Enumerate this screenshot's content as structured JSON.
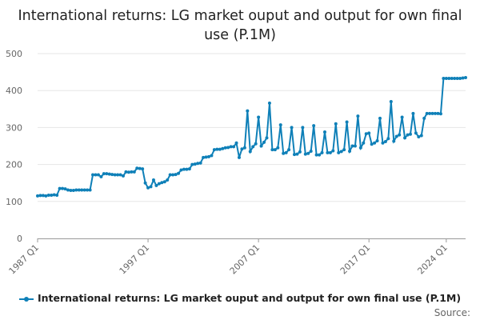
{
  "colors": {
    "series": "#0f80b8",
    "grid": "#e6e6e6",
    "axis": "#999999",
    "text": "#666666"
  },
  "source_label": "Source:",
  "chart_data": {
    "type": "line",
    "title": "International returns: LG market ouput and output for own final use (P.1M)",
    "xlabel": "",
    "ylabel": "",
    "ylim": [
      0,
      500
    ],
    "yticks": [
      0,
      100,
      200,
      300,
      400,
      500
    ],
    "xticks": [
      "1987 Q1",
      "1997 Q1",
      "2007 Q1",
      "2017 Q1",
      "2024 Q1"
    ],
    "grid": true,
    "legend_position": "bottom",
    "series": [
      {
        "name": "International returns: LG market ouput and output for own final use (P.1M)",
        "x_start": "1987 Q1",
        "x_end": "2024 Q4",
        "values": [
          115,
          116,
          116,
          115,
          117,
          117,
          118,
          117,
          135,
          135,
          134,
          131,
          130,
          130,
          131,
          131,
          131,
          131,
          131,
          131,
          172,
          172,
          172,
          167,
          175,
          175,
          174,
          173,
          172,
          172,
          172,
          169,
          180,
          179,
          180,
          180,
          190,
          189,
          188,
          150,
          137,
          140,
          158,
          143,
          148,
          151,
          153,
          158,
          172,
          172,
          173,
          176,
          185,
          187,
          187,
          188,
          200,
          201,
          203,
          204,
          219,
          220,
          221,
          224,
          240,
          241,
          241,
          243,
          245,
          246,
          248,
          248,
          258,
          219,
          242,
          245,
          345,
          235,
          248,
          256,
          328,
          250,
          260,
          272,
          366,
          240,
          240,
          245,
          307,
          230,
          232,
          240,
          300,
          227,
          228,
          234,
          300,
          228,
          230,
          236,
          305,
          226,
          226,
          232,
          288,
          232,
          232,
          237,
          310,
          232,
          235,
          240,
          315,
          236,
          250,
          250,
          331,
          245,
          258,
          283,
          285,
          255,
          258,
          264,
          325,
          258,
          262,
          270,
          370,
          263,
          276,
          280,
          328,
          272,
          280,
          282,
          338,
          285,
          275,
          278,
          325,
          338,
          338,
          338,
          338,
          338,
          337,
          433,
          433,
          433,
          433,
          433,
          433,
          433,
          434,
          435
        ]
      }
    ]
  }
}
